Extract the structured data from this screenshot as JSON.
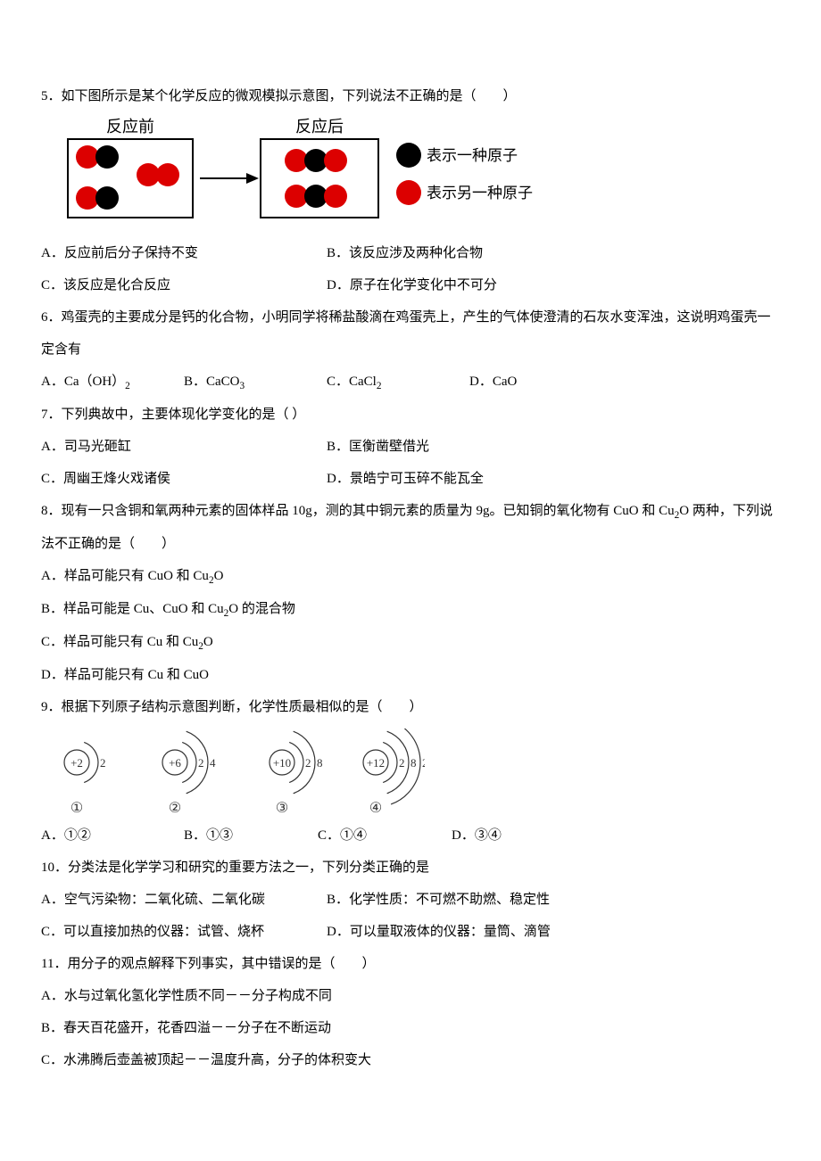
{
  "q5": {
    "stem": "5．如下图所示是某个化学反应的微观模拟示意图，下列说法不正确的是（　　）",
    "diagram": {
      "before_label": "反应前",
      "after_label": "反应后",
      "legend1": "表示一种原子",
      "legend2": "表示另一种原子",
      "colors": {
        "black": "#000000",
        "red": "#dc0000",
        "box_stroke": "#000000",
        "text": "#000000",
        "bg": "#ffffff"
      },
      "font_size_label": 18
    },
    "A": "A．反应前后分子保持不变",
    "B": "B．该反应涉及两种化合物",
    "C": "C．该反应是化合反应",
    "D": "D．原子在化学变化中不可分"
  },
  "q6": {
    "stem": "6．鸡蛋壳的主要成分是钙的化合物，小明同学将稀盐酸滴在鸡蛋壳上，产生的气体使澄清的石灰水变浑浊，这说明鸡蛋壳一定含有",
    "A_pre": "A．Ca（OH）",
    "A_sub": "2",
    "B_pre": "B．CaCO",
    "B_sub": "3",
    "C_pre": "C．CaCl",
    "C_sub": "2",
    "D": "D．CaO"
  },
  "q7": {
    "stem": "7．下列典故中，主要体现化学变化的是（ ）",
    "A": "A．司马光砸缸",
    "B": "B．匡衡凿壁借光",
    "C": "C．周幽王烽火戏诸侯",
    "D": "D．景皓宁可玉碎不能瓦全"
  },
  "q8": {
    "stem_1": "8．现有一只含铜和氧两种元素的固体样品 10g，测的其中铜元素的质量为 9g。已知铜的氧化物有 CuO 和 Cu",
    "stem_sub1": "2",
    "stem_2": "O 两种，下列说法不正确的是（　　）",
    "A_1": "A．样品可能只有 CuO 和 Cu",
    "A_sub": "2",
    "A_2": "O",
    "B_1": "B．样品可能是 Cu、CuO 和 Cu",
    "B_sub": "2",
    "B_2": "O 的混合物",
    "C_1": "C．样品可能只有 Cu 和 Cu",
    "C_sub": "2",
    "C_2": "O",
    "D": "D．样品可能只有 Cu 和 CuO"
  },
  "q9": {
    "stem": "9．根据下列原子结构示意图判断，化学性质最相似的是（　　）",
    "diagram": {
      "atoms": [
        {
          "nucleus": "+2",
          "shells": [
            "2"
          ]
        },
        {
          "nucleus": "+6",
          "shells": [
            "2",
            "4"
          ]
        },
        {
          "nucleus": "+10",
          "shells": [
            "2",
            "8"
          ]
        },
        {
          "nucleus": "+12",
          "shells": [
            "2",
            "8",
            "2"
          ]
        }
      ],
      "labels": [
        "①",
        "②",
        "③",
        "④"
      ],
      "stroke": "#333333",
      "text_color": "#333333"
    },
    "A": "A．①②",
    "B": "B．①③",
    "C": "C．①④",
    "D": "D．③④"
  },
  "q10": {
    "stem": "10．分类法是化学学习和研究的重要方法之一，下列分类正确的是",
    "A": "A．空气污染物：二氧化硫、二氧化碳",
    "B": "B．化学性质：不可燃不助燃、稳定性",
    "C": "C．可以直接加热的仪器：试管、烧杯",
    "D": "D．可以量取液体的仪器：量筒、滴管"
  },
  "q11": {
    "stem": "11．用分子的观点解释下列事实，其中错误的是（　　）",
    "A": "A．水与过氧化氢化学性质不同－－分子构成不同",
    "B": "B．春天百花盛开，花香四溢－－分子在不断运动",
    "C": "C．水沸腾后壶盖被顶起－－温度升高，分子的体积变大"
  }
}
